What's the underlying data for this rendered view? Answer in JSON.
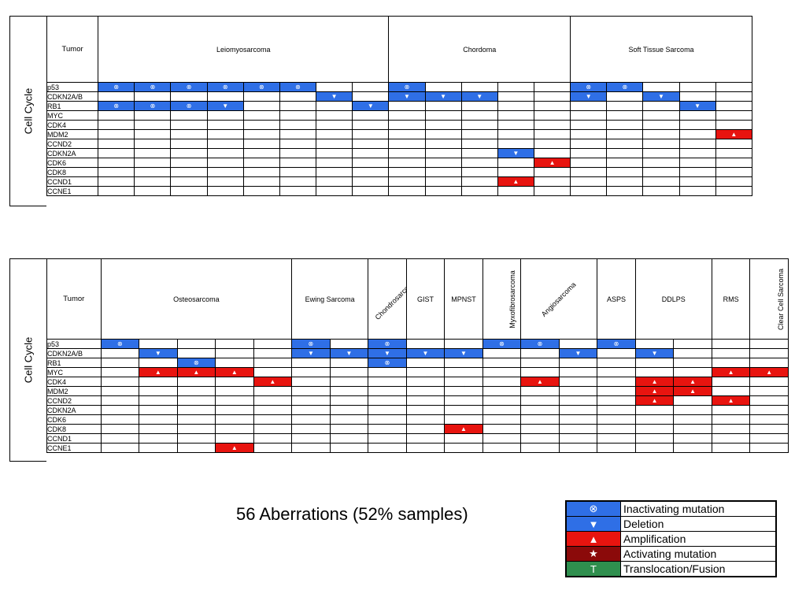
{
  "symbols": {
    "inactivating": "⊗",
    "deletion": "▼",
    "amplification": "▲",
    "activating": "★",
    "translocation": "T"
  },
  "colors": {
    "inactivating": "#2f6fe6",
    "deletion": "#2f6fe6",
    "amplification": "#e8140f",
    "activating": "#8b0a0a",
    "translocation": "#2f8f4e"
  },
  "panel1": {
    "side_label": "Cell Cycle",
    "tumor_label": "Tumor",
    "groups": [
      {
        "name": "Leiomyosarcoma",
        "span": 8,
        "rot": 0
      },
      {
        "name": "Chordoma",
        "span": 5,
        "rot": 0
      },
      {
        "name": "Soft Tissue Sarcoma",
        "span": 5,
        "rot": 0
      }
    ],
    "genes": [
      "p53",
      "CDKN2A/B",
      "RB1",
      "MYC",
      "CDK4",
      "MDM2",
      "CCND2",
      "CDKN2A",
      "CDK6",
      "CDK8",
      "CCND1",
      "CCNE1"
    ],
    "cells": [
      [
        "I",
        "I",
        "I",
        "I",
        "I",
        "I",
        "",
        "",
        "I",
        "",
        "",
        "",
        "",
        "I",
        "I",
        "",
        "",
        ""
      ],
      [
        "",
        "",
        "",
        "",
        "",
        "",
        "D",
        "",
        "D",
        "D",
        "D",
        "",
        "",
        "D",
        "",
        "D",
        "",
        ""
      ],
      [
        "I",
        "I",
        "I",
        "D",
        "",
        "",
        "",
        "D",
        "",
        "",
        "",
        "",
        "",
        "",
        "",
        "",
        "D",
        ""
      ],
      [
        "",
        "",
        "",
        "",
        "",
        "",
        "",
        "",
        "",
        "",
        "",
        "",
        "",
        "",
        "",
        "",
        "",
        ""
      ],
      [
        "",
        "",
        "",
        "",
        "",
        "",
        "",
        "",
        "",
        "",
        "",
        "",
        "",
        "",
        "",
        "",
        "",
        ""
      ],
      [
        "",
        "",
        "",
        "",
        "",
        "",
        "",
        "",
        "",
        "",
        "",
        "",
        "",
        "",
        "",
        "",
        "",
        "A"
      ],
      [
        "",
        "",
        "",
        "",
        "",
        "",
        "",
        "",
        "",
        "",
        "",
        "",
        "",
        "",
        "",
        "",
        "",
        ""
      ],
      [
        "",
        "",
        "",
        "",
        "",
        "",
        "",
        "",
        "",
        "",
        "",
        "D",
        "",
        "",
        "",
        "",
        "",
        ""
      ],
      [
        "",
        "",
        "",
        "",
        "",
        "",
        "",
        "",
        "",
        "",
        "",
        "",
        "A",
        "",
        "",
        "",
        "",
        ""
      ],
      [
        "",
        "",
        "",
        "",
        "",
        "",
        "",
        "",
        "",
        "",
        "",
        "",
        "",
        "",
        "",
        "",
        "",
        ""
      ],
      [
        "",
        "",
        "",
        "",
        "",
        "",
        "",
        "",
        "",
        "",
        "",
        "A",
        "",
        "",
        "",
        "",
        "",
        ""
      ],
      [
        "",
        "",
        "",
        "",
        "",
        "",
        "",
        "",
        "",
        "",
        "",
        "",
        "",
        "",
        "",
        "",
        "",
        ""
      ]
    ]
  },
  "panel2": {
    "side_label": "Cell Cycle",
    "tumor_label": "Tumor",
    "groups": [
      {
        "name": "Osteosarcoma",
        "span": 5,
        "rot": 0
      },
      {
        "name": "Ewing Sarcoma",
        "span": 2,
        "rot": 0
      },
      {
        "name": "Chondrosarcoma",
        "span": 1,
        "rot": 45
      },
      {
        "name": "GIST",
        "span": 1,
        "rot": 0
      },
      {
        "name": "MPNST",
        "span": 1,
        "rot": 0
      },
      {
        "name": "Myxofibrosarcoma",
        "span": 1,
        "rot": 90
      },
      {
        "name": "Angiosarcoma",
        "span": 2,
        "rot": 45
      },
      {
        "name": "ASPS",
        "span": 1,
        "rot": 0
      },
      {
        "name": "DDLPS",
        "span": 2,
        "rot": 0
      },
      {
        "name": "RMS",
        "span": 1,
        "rot": 0
      },
      {
        "name": "Clear Cell Sarcoma",
        "span": 1,
        "rot": 90
      }
    ],
    "genes": [
      "p53",
      "CDKN2A/B",
      "RB1",
      "MYC",
      "CDK4",
      "MDM2",
      "CCND2",
      "CDKN2A",
      "CDK6",
      "CDK8",
      "CCND1",
      "CCNE1"
    ],
    "cells": [
      [
        "I",
        "",
        "",
        "",
        "",
        "I",
        "",
        "I",
        "",
        "",
        "I",
        "I",
        "",
        "I",
        "",
        "",
        "",
        ""
      ],
      [
        "",
        "D",
        "",
        "",
        "",
        "D",
        "D",
        "D",
        "D",
        "D",
        "",
        "",
        "D",
        "",
        "D",
        "",
        "",
        ""
      ],
      [
        "",
        "",
        "I",
        "",
        "",
        "",
        "",
        "I",
        "",
        "",
        "",
        "",
        "",
        "",
        "",
        "",
        "",
        ""
      ],
      [
        "",
        "A",
        "A",
        "A",
        "",
        "",
        "",
        "",
        "",
        "",
        "",
        "",
        "",
        "",
        "",
        "",
        "A",
        "A"
      ],
      [
        "",
        "",
        "",
        "",
        "A",
        "",
        "",
        "",
        "",
        "",
        "",
        "A",
        "",
        "",
        "A",
        "A",
        "",
        ""
      ],
      [
        "",
        "",
        "",
        "",
        "",
        "",
        "",
        "",
        "",
        "",
        "",
        "",
        "",
        "",
        "A",
        "A",
        "",
        ""
      ],
      [
        "",
        "",
        "",
        "",
        "",
        "",
        "",
        "",
        "",
        "",
        "",
        "",
        "",
        "",
        "A",
        "",
        "A",
        ""
      ],
      [
        "",
        "",
        "",
        "",
        "",
        "",
        "",
        "",
        "",
        "",
        "",
        "",
        "",
        "",
        "",
        "",
        "",
        ""
      ],
      [
        "",
        "",
        "",
        "",
        "",
        "",
        "",
        "",
        "",
        "",
        "",
        "",
        "",
        "",
        "",
        "",
        "",
        ""
      ],
      [
        "",
        "",
        "",
        "",
        "",
        "",
        "",
        "",
        "",
        "A",
        "",
        "",
        "",
        "",
        "",
        "",
        "",
        ""
      ],
      [
        "",
        "",
        "",
        "",
        "",
        "",
        "",
        "",
        "",
        "",
        "",
        "",
        "",
        "",
        "",
        "",
        "",
        ""
      ],
      [
        "",
        "",
        "",
        "A",
        "",
        "",
        "",
        "",
        "",
        "",
        "",
        "",
        "",
        "",
        "",
        "",
        "",
        ""
      ]
    ]
  },
  "summary": "56  Aberrations (52% samples)",
  "legend": [
    {
      "code": "I",
      "label": "Inactivating mutation"
    },
    {
      "code": "D",
      "label": "Deletion"
    },
    {
      "code": "A",
      "label": "Amplification"
    },
    {
      "code": "S",
      "label": "Activating mutation"
    },
    {
      "code": "T",
      "label": "Translocation/Fusion"
    }
  ]
}
